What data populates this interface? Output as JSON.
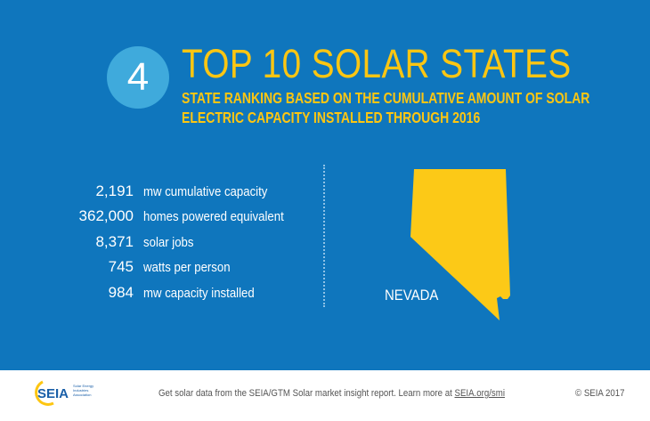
{
  "header": {
    "rank": "4",
    "title": "TOP 10 SOLAR STATES",
    "subtitle_line1": "STATE RANKING BASED ON THE CUMULATIVE AMOUNT OF SOLAR",
    "subtitle_line2": "ELECTRIC CAPACITY INSTALLED THROUGH 2016"
  },
  "stats": [
    {
      "value": "2,191",
      "label": "mw cumulative capacity"
    },
    {
      "value": "362,000",
      "label": "homes powered equivalent"
    },
    {
      "value": "8,371",
      "label": "solar jobs"
    },
    {
      "value": "745",
      "label": "watts per person"
    },
    {
      "value": "984",
      "label": "mw capacity installed"
    }
  ],
  "state": {
    "name": "NEVADA"
  },
  "footer": {
    "logo_text": "SEIA",
    "logo_tagline": "Solar Energy Industries Association",
    "text": "Get solar data from the SEIA/GTM Solar market insight report. Learn more at ",
    "link": "SEIA.org/smi",
    "copyright": "© SEIA 2017"
  },
  "colors": {
    "background": "#0f76bd",
    "accent": "#fdc612",
    "circle": "#3faadc"
  }
}
